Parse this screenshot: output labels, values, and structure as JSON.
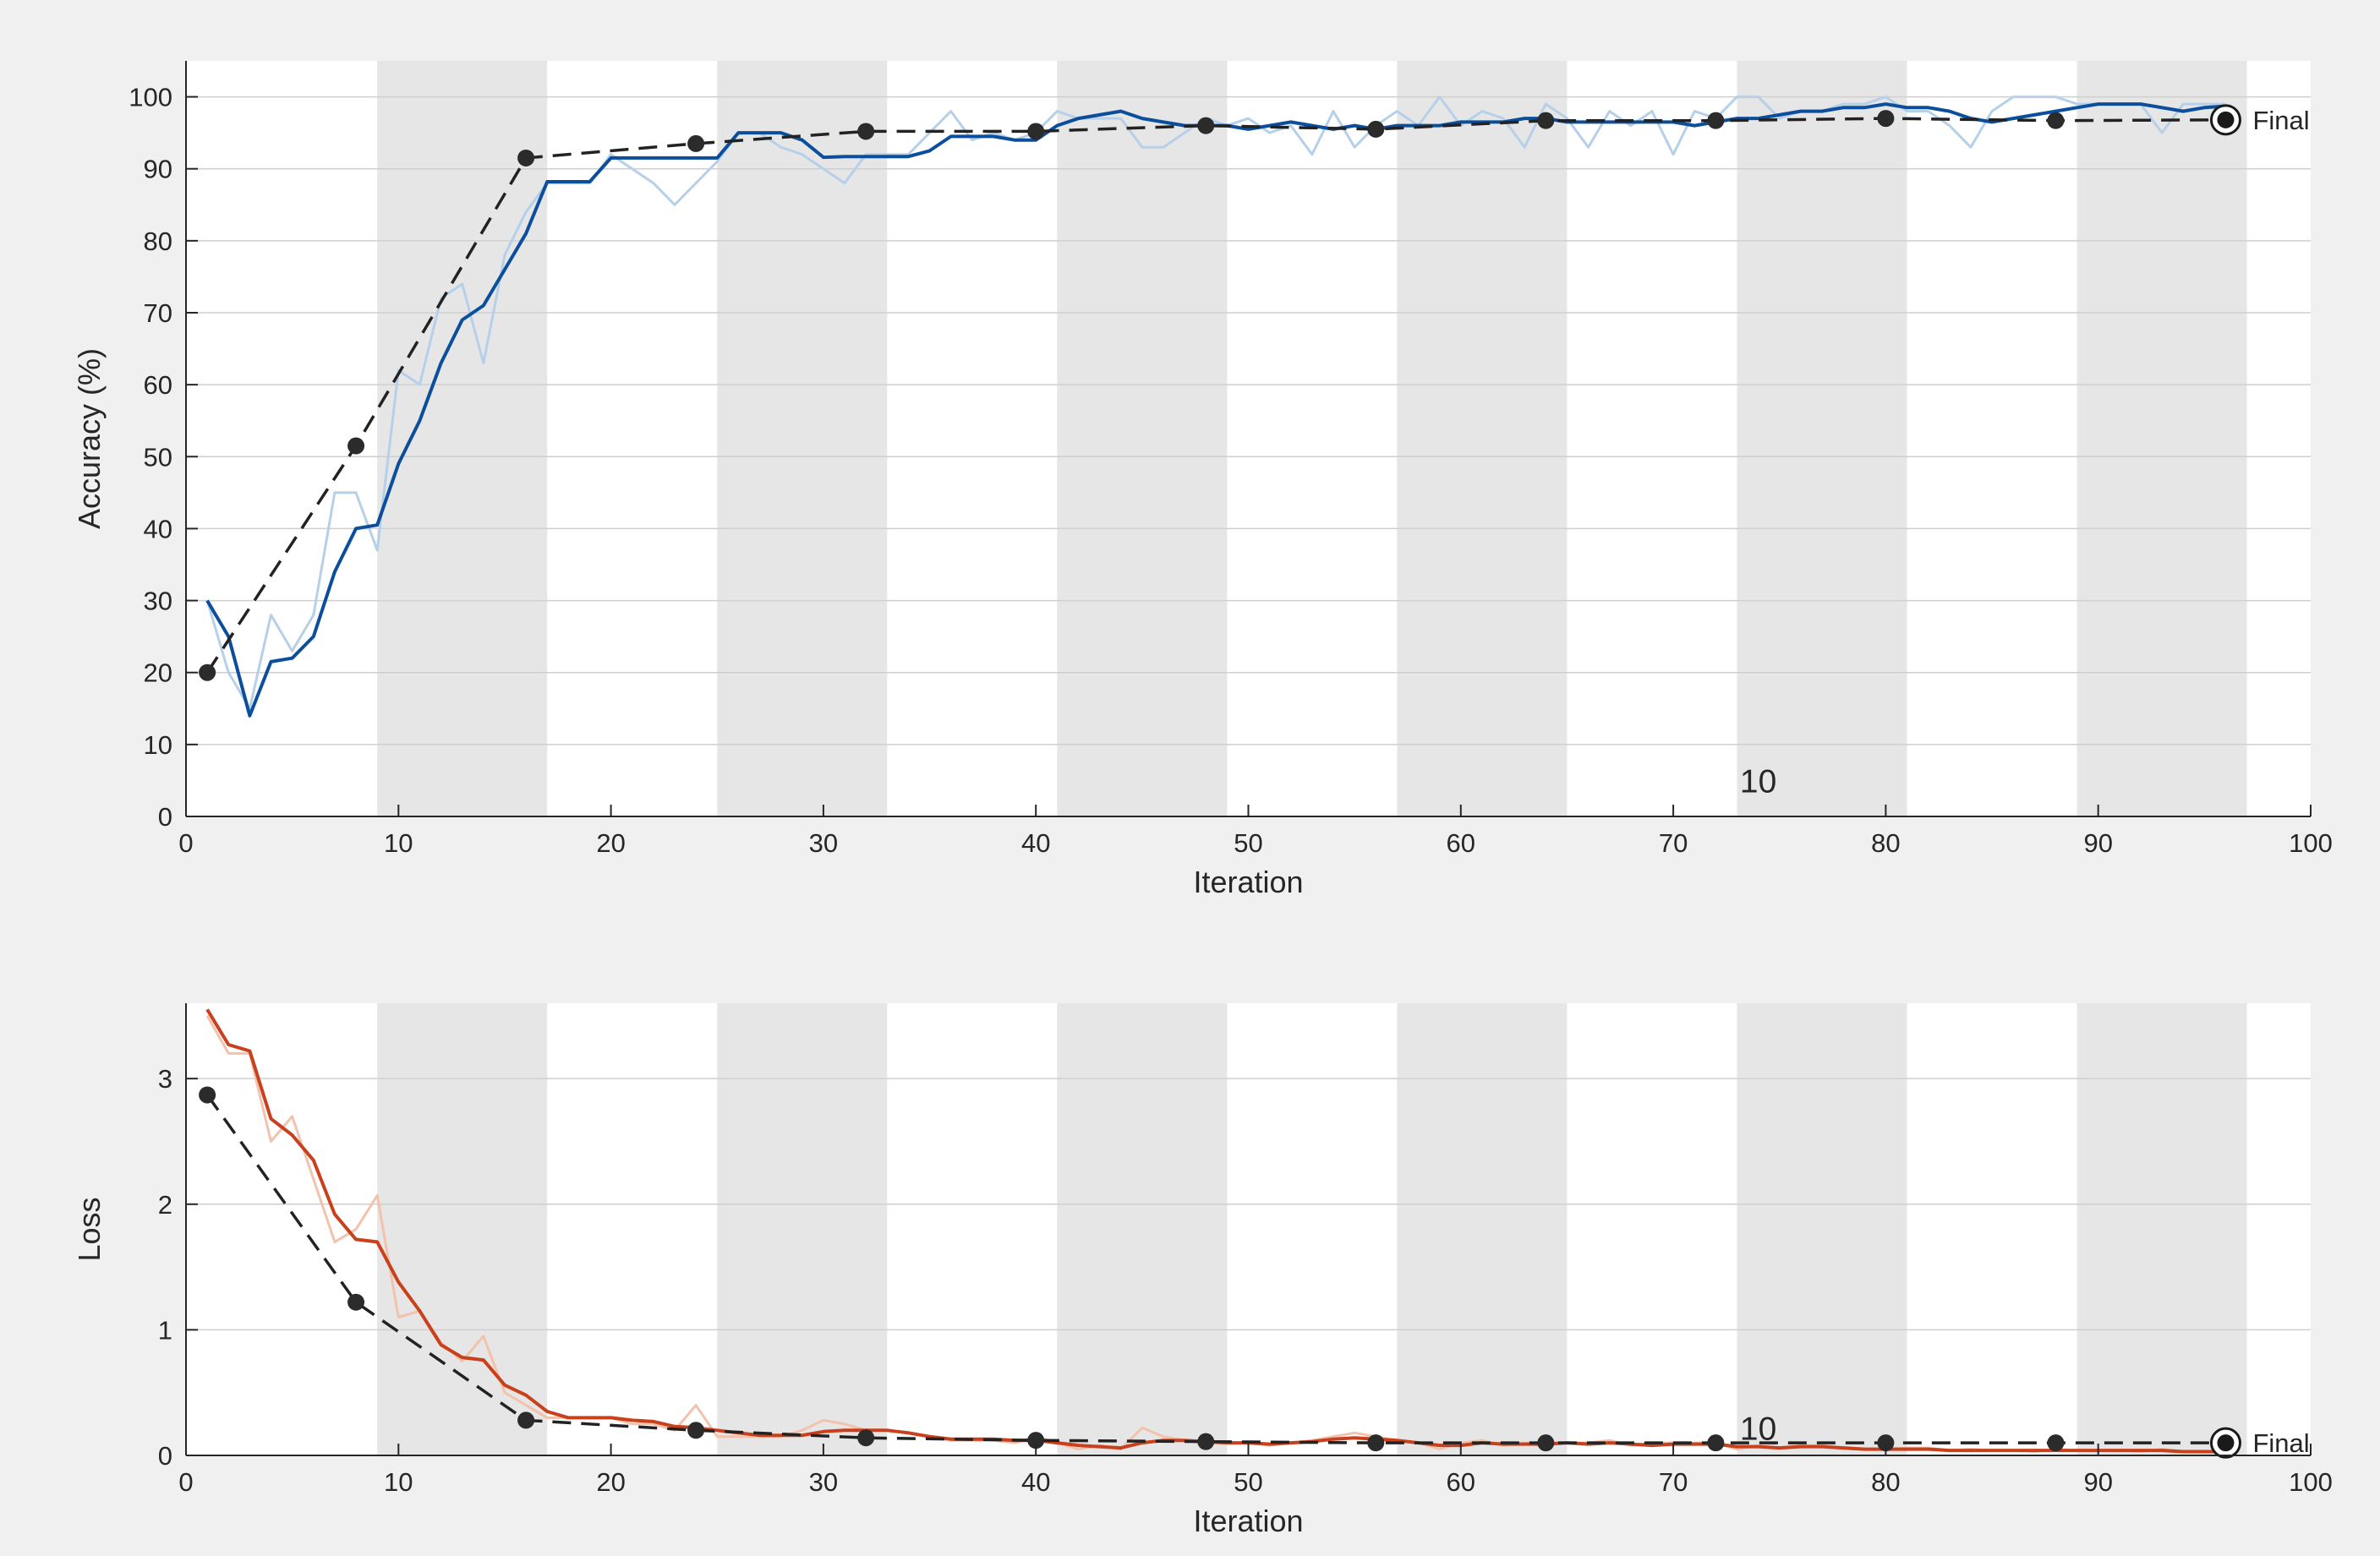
{
  "chart_data": [
    {
      "type": "line",
      "xlabel": "Iteration",
      "ylabel": "Accuracy (%)",
      "xlim": [
        0,
        100
      ],
      "ylim": [
        0,
        105
      ],
      "xticks": [
        0,
        10,
        20,
        30,
        40,
        50,
        60,
        70,
        80,
        90,
        100
      ],
      "yticks": [
        0,
        10,
        20,
        30,
        40,
        50,
        60,
        70,
        80,
        90,
        100
      ],
      "grid": "horizontal",
      "epoch_bands": [
        [
          9,
          17
        ],
        [
          25,
          33
        ],
        [
          41,
          49
        ],
        [
          57,
          65
        ],
        [
          73,
          81
        ],
        [
          89,
          97
        ]
      ],
      "epoch_annotation": {
        "text": "10",
        "x": 74,
        "y": 5
      },
      "final_marker": {
        "label": "Final",
        "x": 96,
        "y": 96.8
      },
      "colors": {
        "raw": "#b5d0e8",
        "smoothed": "#0b4f9c",
        "validation": "#222222",
        "band": "#e6e6e6"
      },
      "series": [
        {
          "style": "raw-light",
          "x": [
            1,
            2,
            3,
            4,
            5,
            6,
            7,
            8,
            9,
            10,
            11,
            12,
            13,
            14,
            15,
            16,
            17,
            18,
            19,
            20,
            21,
            22,
            23,
            24,
            25,
            26,
            27,
            28,
            29,
            30,
            31,
            32,
            33,
            34,
            35,
            36,
            37,
            38,
            39,
            40,
            41,
            42,
            43,
            44,
            45,
            46,
            47,
            48,
            49,
            50,
            51,
            52,
            53,
            54,
            55,
            56,
            57,
            58,
            59,
            60,
            61,
            62,
            63,
            64,
            65,
            66,
            67,
            68,
            69,
            70,
            71,
            72,
            73,
            74,
            75,
            76,
            77,
            78,
            79,
            80,
            81,
            82,
            83,
            84,
            85,
            86,
            87,
            88,
            89,
            90,
            91,
            92,
            93,
            94,
            95,
            96
          ],
          "values": [
            30,
            20,
            15,
            28,
            23,
            28,
            45,
            45,
            37,
            62,
            60,
            72,
            74,
            63,
            78,
            84,
            88,
            88,
            88,
            92,
            90,
            88,
            85,
            88,
            91,
            95,
            95,
            93,
            92,
            90,
            88,
            92,
            92,
            92,
            95,
            98,
            94,
            95,
            94,
            95,
            98,
            97,
            97,
            97,
            93,
            93,
            95,
            97,
            96,
            97,
            95,
            96,
            92,
            98,
            93,
            96,
            98,
            96,
            100,
            96,
            98,
            97,
            93,
            99,
            97,
            93,
            98,
            96,
            98,
            92,
            98,
            97,
            100,
            100,
            97,
            98,
            98,
            99,
            99,
            100,
            98,
            98,
            96,
            93,
            98,
            100,
            100,
            100,
            99,
            99,
            99,
            99,
            95,
            99,
            99,
            99
          ]
        },
        {
          "style": "smoothed",
          "x": [
            1,
            2,
            3,
            4,
            5,
            6,
            7,
            8,
            9,
            10,
            11,
            12,
            13,
            14,
            15,
            16,
            17,
            18,
            19,
            20,
            21,
            22,
            23,
            24,
            25,
            26,
            27,
            28,
            29,
            30,
            31,
            32,
            33,
            34,
            35,
            36,
            37,
            38,
            39,
            40,
            41,
            42,
            43,
            44,
            45,
            46,
            47,
            48,
            49,
            50,
            51,
            52,
            53,
            54,
            55,
            56,
            57,
            58,
            59,
            60,
            61,
            62,
            63,
            64,
            65,
            66,
            67,
            68,
            69,
            70,
            71,
            72,
            73,
            74,
            75,
            76,
            77,
            78,
            79,
            80,
            81,
            82,
            83,
            84,
            85,
            86,
            87,
            88,
            89,
            90,
            91,
            92,
            93,
            94,
            95,
            96
          ],
          "values": [
            30,
            25,
            14,
            21.5,
            22,
            25,
            34,
            40,
            40.5,
            49,
            55,
            63,
            69,
            71,
            76,
            81,
            88.2,
            88.2,
            88.2,
            91.5,
            91.5,
            91.5,
            91.5,
            91.5,
            91.5,
            95,
            95,
            95,
            94,
            91.6,
            91.7,
            91.7,
            91.7,
            91.7,
            92.5,
            94.5,
            94.5,
            94.5,
            94,
            94,
            96,
            97,
            97.5,
            98,
            97,
            96.5,
            96,
            96,
            96,
            95.5,
            96,
            96.5,
            96,
            95.5,
            96,
            95.5,
            96,
            96,
            96,
            96.5,
            96.5,
            96.5,
            97,
            97,
            96.5,
            96.5,
            96.5,
            96.5,
            96.5,
            96.5,
            96,
            96.5,
            97,
            97,
            97.5,
            98,
            98,
            98.5,
            98.5,
            99,
            98.5,
            98.5,
            98,
            97,
            96.5,
            97,
            97.5,
            98,
            98.5,
            99,
            99,
            99,
            98.5,
            98,
            98.5,
            98.7
          ]
        },
        {
          "style": "validation",
          "x": [
            1,
            8,
            16,
            24,
            32,
            40,
            48,
            56,
            64,
            72,
            80,
            88,
            96
          ],
          "values": [
            20,
            51.5,
            91.5,
            93.5,
            95.2,
            95.2,
            96,
            95.5,
            96.7,
            96.7,
            97,
            96.7,
            96.8
          ]
        }
      ]
    },
    {
      "type": "line",
      "xlabel": "Iteration",
      "ylabel": "Loss",
      "xlim": [
        0,
        100
      ],
      "ylim": [
        0,
        3.6
      ],
      "xticks": [
        0,
        10,
        20,
        30,
        40,
        50,
        60,
        70,
        80,
        90,
        100
      ],
      "yticks": [
        0,
        1,
        2,
        3
      ],
      "grid": "horizontal",
      "epoch_bands": [
        [
          9,
          17
        ],
        [
          25,
          33
        ],
        [
          41,
          49
        ],
        [
          57,
          65
        ],
        [
          73,
          81
        ],
        [
          89,
          97
        ]
      ],
      "epoch_annotation": {
        "text": "10",
        "x": 74,
        "y": 0.22
      },
      "final_marker": {
        "label": "Final",
        "x": 96,
        "y": 0.1
      },
      "colors": {
        "raw": "#f2c2ad",
        "smoothed": "#c8401c",
        "validation": "#222222",
        "band": "#e6e6e6"
      },
      "series": [
        {
          "style": "raw-light",
          "x": [
            1,
            2,
            3,
            4,
            5,
            6,
            7,
            8,
            9,
            10,
            11,
            12,
            13,
            14,
            15,
            16,
            17,
            18,
            19,
            20,
            21,
            22,
            23,
            24,
            25,
            26,
            27,
            28,
            29,
            30,
            31,
            32,
            33,
            34,
            35,
            36,
            37,
            38,
            39,
            40,
            41,
            42,
            43,
            44,
            45,
            46,
            47,
            48,
            49,
            50,
            51,
            52,
            53,
            54,
            55,
            56,
            57,
            58,
            59,
            60,
            61,
            62,
            63,
            64,
            65,
            66,
            67,
            68,
            69,
            70,
            71,
            72,
            73,
            74,
            75,
            76,
            77,
            78,
            79,
            80,
            81,
            82,
            83,
            84,
            85,
            86,
            87,
            88,
            89,
            90,
            91,
            92,
            93,
            94,
            95,
            96
          ],
          "values": [
            3.5,
            3.2,
            3.2,
            2.5,
            2.7,
            2.2,
            1.7,
            1.8,
            2.07,
            1.1,
            1.15,
            0.9,
            0.75,
            0.95,
            0.5,
            0.4,
            0.3,
            0.3,
            0.3,
            0.3,
            0.25,
            0.25,
            0.2,
            0.4,
            0.15,
            0.15,
            0.15,
            0.15,
            0.2,
            0.28,
            0.25,
            0.2,
            0.2,
            0.18,
            0.15,
            0.12,
            0.12,
            0.12,
            0.1,
            0.15,
            0.1,
            0.05,
            0.08,
            0.05,
            0.22,
            0.15,
            0.12,
            0.1,
            0.1,
            0.1,
            0.08,
            0.1,
            0.12,
            0.15,
            0.18,
            0.15,
            0.12,
            0.1,
            0.05,
            0.1,
            0.12,
            0.08,
            0.1,
            0.1,
            0.1,
            0.1,
            0.12,
            0.08,
            0.1,
            0.1,
            0.1,
            0.1,
            0.05,
            0.08,
            0.06,
            0.08,
            0.08,
            0.06,
            0.05,
            0.05,
            0.06,
            0.06,
            0.04,
            0.05,
            0.04,
            0.04,
            0.03,
            0.05,
            0.04,
            0.04,
            0.04,
            0.03,
            0.05,
            0.03,
            0.03,
            0.03
          ]
        },
        {
          "style": "smoothed",
          "x": [
            1,
            2,
            3,
            4,
            5,
            6,
            7,
            8,
            9,
            10,
            11,
            12,
            13,
            14,
            15,
            16,
            17,
            18,
            19,
            20,
            21,
            22,
            23,
            24,
            25,
            26,
            27,
            28,
            29,
            30,
            31,
            32,
            33,
            34,
            35,
            36,
            37,
            38,
            39,
            40,
            41,
            42,
            43,
            44,
            45,
            46,
            47,
            48,
            49,
            50,
            51,
            52,
            53,
            54,
            55,
            56,
            57,
            58,
            59,
            60,
            61,
            62,
            63,
            64,
            65,
            66,
            67,
            68,
            69,
            70,
            71,
            72,
            73,
            74,
            75,
            76,
            77,
            78,
            79,
            80,
            81,
            82,
            83,
            84,
            85,
            86,
            87,
            88,
            89,
            90,
            91,
            92,
            93,
            94,
            95,
            96
          ],
          "values": [
            3.55,
            3.27,
            3.22,
            2.68,
            2.55,
            2.35,
            1.92,
            1.72,
            1.7,
            1.38,
            1.15,
            0.88,
            0.78,
            0.76,
            0.56,
            0.48,
            0.35,
            0.3,
            0.3,
            0.3,
            0.28,
            0.27,
            0.23,
            0.22,
            0.2,
            0.18,
            0.16,
            0.16,
            0.16,
            0.19,
            0.2,
            0.2,
            0.2,
            0.18,
            0.15,
            0.13,
            0.13,
            0.13,
            0.12,
            0.12,
            0.1,
            0.08,
            0.07,
            0.06,
            0.1,
            0.12,
            0.12,
            0.11,
            0.1,
            0.1,
            0.09,
            0.1,
            0.11,
            0.13,
            0.14,
            0.13,
            0.12,
            0.1,
            0.08,
            0.08,
            0.1,
            0.09,
            0.09,
            0.09,
            0.1,
            0.09,
            0.1,
            0.09,
            0.08,
            0.09,
            0.09,
            0.09,
            0.07,
            0.07,
            0.06,
            0.07,
            0.07,
            0.06,
            0.05,
            0.05,
            0.05,
            0.05,
            0.04,
            0.04,
            0.04,
            0.04,
            0.04,
            0.04,
            0.04,
            0.04,
            0.04,
            0.04,
            0.04,
            0.03,
            0.03,
            0.03
          ]
        },
        {
          "style": "validation",
          "x": [
            1,
            8,
            16,
            24,
            32,
            40,
            48,
            56,
            64,
            72,
            80,
            88,
            96
          ],
          "values": [
            2.87,
            1.22,
            0.28,
            0.2,
            0.14,
            0.12,
            0.11,
            0.1,
            0.1,
            0.1,
            0.1,
            0.1,
            0.1
          ]
        }
      ]
    }
  ]
}
